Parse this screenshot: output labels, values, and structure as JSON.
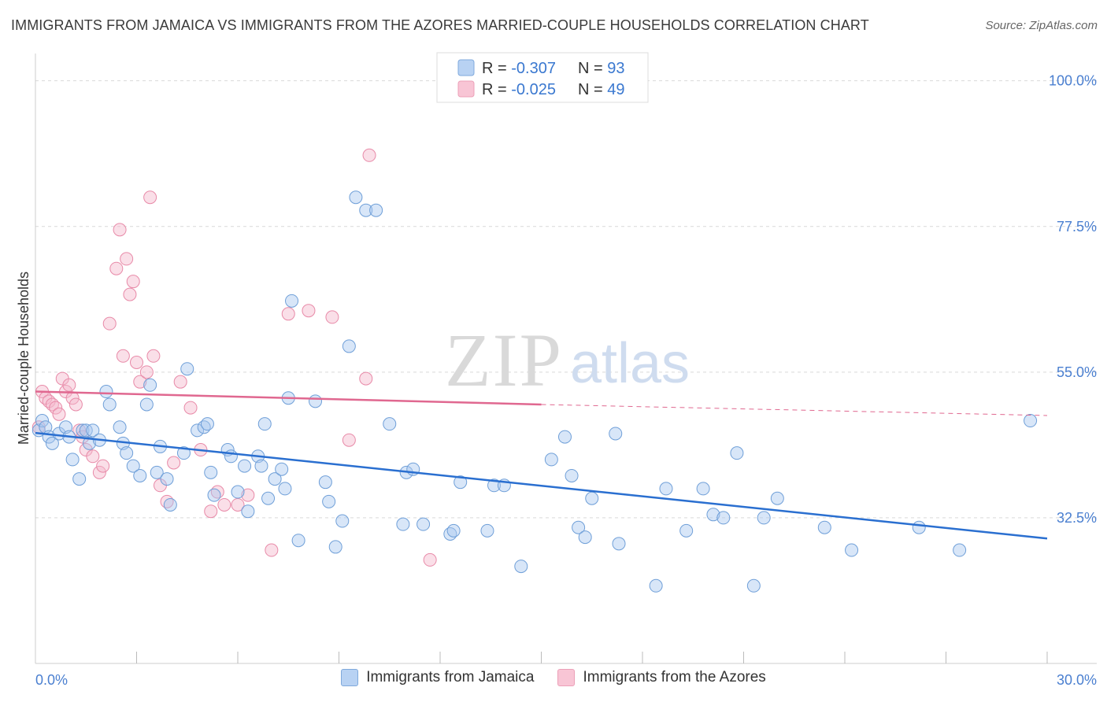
{
  "title": "IMMIGRANTS FROM JAMAICA VS IMMIGRANTS FROM THE AZORES MARRIED-COUPLE HOUSEHOLDS CORRELATION CHART",
  "source": "Source: ZipAtlas.com",
  "watermark": {
    "zip": "ZIP",
    "atlas": "atlas"
  },
  "colors": {
    "jamaica_fill": "#a8c8f0",
    "jamaica_stroke": "#6f9fd8",
    "jamaica_line": "#2a6fd0",
    "azores_fill": "#f5b8cb",
    "azores_stroke": "#e88aa8",
    "azores_line": "#e06890",
    "tick_label": "#4a7fd0",
    "grid": "#d9d9d9"
  },
  "legend_top": [
    {
      "r_label": "R = ",
      "r_value": "-0.307",
      "n_label": "N = ",
      "n_value": "93"
    },
    {
      "r_label": "R = ",
      "r_value": "-0.025",
      "n_label": "N = ",
      "n_value": "49"
    }
  ],
  "legend_bottom": [
    "Immigrants from Jamaica",
    "Immigrants from the Azores"
  ],
  "chart_data": {
    "type": "scatter",
    "title": "IMMIGRANTS FROM JAMAICA VS IMMIGRANTS FROM THE AZORES MARRIED-COUPLE HOUSEHOLDS CORRELATION CHART",
    "xlabel": "",
    "ylabel": "Married-couple Households",
    "xlim": [
      0,
      30
    ],
    "ylim": [
      10,
      103
    ],
    "x_tick_labels": [
      "0.0%",
      "30.0%"
    ],
    "y_ticks": [
      32.5,
      55.0,
      77.5,
      100.0
    ],
    "y_tick_labels": [
      "32.5%",
      "55.0%",
      "77.5%",
      "100.0%"
    ],
    "grid": "horizontal dashed",
    "legend_position": "top-center",
    "series": [
      {
        "name": "Immigrants from Jamaica",
        "points": [
          [
            0.1,
            46.0
          ],
          [
            0.2,
            47.5
          ],
          [
            0.3,
            46.5
          ],
          [
            0.4,
            45.0
          ],
          [
            0.5,
            44.0
          ],
          [
            0.7,
            45.5
          ],
          [
            0.9,
            46.5
          ],
          [
            1.0,
            45.0
          ],
          [
            1.1,
            41.5
          ],
          [
            1.3,
            38.5
          ],
          [
            1.4,
            46.0
          ],
          [
            1.5,
            46.0
          ],
          [
            1.6,
            44.0
          ],
          [
            1.7,
            46.0
          ],
          [
            1.9,
            44.5
          ],
          [
            2.1,
            52.0
          ],
          [
            2.2,
            50.0
          ],
          [
            2.5,
            46.5
          ],
          [
            2.6,
            44.0
          ],
          [
            2.7,
            42.5
          ],
          [
            2.9,
            40.5
          ],
          [
            3.1,
            39.0
          ],
          [
            3.3,
            50.0
          ],
          [
            3.4,
            53.0
          ],
          [
            3.6,
            39.5
          ],
          [
            3.7,
            43.5
          ],
          [
            3.9,
            38.5
          ],
          [
            4.0,
            34.5
          ],
          [
            4.4,
            42.5
          ],
          [
            4.5,
            55.5
          ],
          [
            4.8,
            46.0
          ],
          [
            5.0,
            46.5
          ],
          [
            5.1,
            47.0
          ],
          [
            5.2,
            39.5
          ],
          [
            5.3,
            36.0
          ],
          [
            5.7,
            43.0
          ],
          [
            5.8,
            42.0
          ],
          [
            6.0,
            36.5
          ],
          [
            6.2,
            40.5
          ],
          [
            6.3,
            33.5
          ],
          [
            6.6,
            42.0
          ],
          [
            6.7,
            40.5
          ],
          [
            6.8,
            47.0
          ],
          [
            6.9,
            35.5
          ],
          [
            7.1,
            38.5
          ],
          [
            7.3,
            40.0
          ],
          [
            7.4,
            37.0
          ],
          [
            7.5,
            51.0
          ],
          [
            7.6,
            66.0
          ],
          [
            7.8,
            29.0
          ],
          [
            8.3,
            50.5
          ],
          [
            8.6,
            38.0
          ],
          [
            8.7,
            35.0
          ],
          [
            8.9,
            28.0
          ],
          [
            9.1,
            32.0
          ],
          [
            9.3,
            59.0
          ],
          [
            9.5,
            82.0
          ],
          [
            9.8,
            80.0
          ],
          [
            10.1,
            80.0
          ],
          [
            10.5,
            47.0
          ],
          [
            10.9,
            31.5
          ],
          [
            11.0,
            39.5
          ],
          [
            11.2,
            40.0
          ],
          [
            11.5,
            31.5
          ],
          [
            12.3,
            30.0
          ],
          [
            12.4,
            30.5
          ],
          [
            12.6,
            38.0
          ],
          [
            13.4,
            30.5
          ],
          [
            13.6,
            37.5
          ],
          [
            13.9,
            37.5
          ],
          [
            14.4,
            25.0
          ],
          [
            15.3,
            41.5
          ],
          [
            15.7,
            45.0
          ],
          [
            15.9,
            39.0
          ],
          [
            16.1,
            31.0
          ],
          [
            16.3,
            29.5
          ],
          [
            16.5,
            35.5
          ],
          [
            17.2,
            45.5
          ],
          [
            17.3,
            28.5
          ],
          [
            18.4,
            22.0
          ],
          [
            18.7,
            37.0
          ],
          [
            19.3,
            30.5
          ],
          [
            19.8,
            37.0
          ],
          [
            20.1,
            33.0
          ],
          [
            20.4,
            32.5
          ],
          [
            20.8,
            42.5
          ],
          [
            21.3,
            22.0
          ],
          [
            21.6,
            32.5
          ],
          [
            22.0,
            35.5
          ],
          [
            23.4,
            31.0
          ],
          [
            24.2,
            27.5
          ],
          [
            26.2,
            31.0
          ],
          [
            27.4,
            27.5
          ],
          [
            29.5,
            47.5
          ]
        ]
      },
      {
        "name": "Immigrants from the Azores",
        "points": [
          [
            0.1,
            46.5
          ],
          [
            0.2,
            52.0
          ],
          [
            0.3,
            51.0
          ],
          [
            0.4,
            50.5
          ],
          [
            0.5,
            50.0
          ],
          [
            0.6,
            49.5
          ],
          [
            0.7,
            48.5
          ],
          [
            0.8,
            54.0
          ],
          [
            0.9,
            52.0
          ],
          [
            1.0,
            53.0
          ],
          [
            1.1,
            51.0
          ],
          [
            1.2,
            50.0
          ],
          [
            1.3,
            46.0
          ],
          [
            1.4,
            45.0
          ],
          [
            1.5,
            43.0
          ],
          [
            1.7,
            42.0
          ],
          [
            1.9,
            39.5
          ],
          [
            2.0,
            40.5
          ],
          [
            2.2,
            62.5
          ],
          [
            2.4,
            71.0
          ],
          [
            2.5,
            77.0
          ],
          [
            2.6,
            57.5
          ],
          [
            2.7,
            72.5
          ],
          [
            2.8,
            67.0
          ],
          [
            2.9,
            69.0
          ],
          [
            3.0,
            56.5
          ],
          [
            3.1,
            53.5
          ],
          [
            3.3,
            55.0
          ],
          [
            3.4,
            82.0
          ],
          [
            3.5,
            57.5
          ],
          [
            3.7,
            37.5
          ],
          [
            3.9,
            35.0
          ],
          [
            4.1,
            41.0
          ],
          [
            4.3,
            53.5
          ],
          [
            4.6,
            49.5
          ],
          [
            4.9,
            43.0
          ],
          [
            5.2,
            33.5
          ],
          [
            5.4,
            36.5
          ],
          [
            5.6,
            34.5
          ],
          [
            6.0,
            34.5
          ],
          [
            6.3,
            36.0
          ],
          [
            7.0,
            27.5
          ],
          [
            7.5,
            64.0
          ],
          [
            8.1,
            64.5
          ],
          [
            8.8,
            63.5
          ],
          [
            9.3,
            44.5
          ],
          [
            9.8,
            54.0
          ],
          [
            9.9,
            88.5
          ],
          [
            11.7,
            26.0
          ]
        ]
      }
    ],
    "trend_lines": [
      {
        "series": "Immigrants from Jamaica",
        "x": [
          0,
          30
        ],
        "y": [
          45.6,
          29.3
        ],
        "style": "solid"
      },
      {
        "series": "Immigrants from the Azores",
        "x": [
          0,
          15
        ],
        "y": [
          52.0,
          50.0
        ],
        "style": "solid"
      },
      {
        "series": "Immigrants from the Azores",
        "x": [
          15,
          30
        ],
        "y": [
          50.0,
          48.3
        ],
        "style": "dashed"
      }
    ]
  }
}
